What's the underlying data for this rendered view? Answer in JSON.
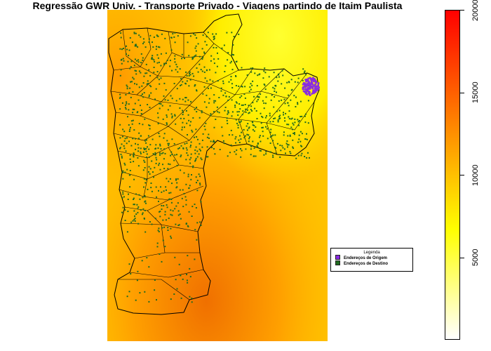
{
  "map": {
    "title": "Regressão GWR Univ. - Transporte Privado - Viagens partindo de Itaim Paulista",
    "legend": {
      "title": "Legenda",
      "items": [
        {
          "label": "Endereços de Origem",
          "color": "#8a2be2"
        },
        {
          "label": "Endereços de Destino",
          "color": "#1f6b1f"
        }
      ]
    },
    "colorbar": {
      "min": 0,
      "max": 20000,
      "ticks": [
        "5000",
        "10000",
        "15000",
        "20000"
      ],
      "colors": [
        "#ffffff",
        "#ffff00",
        "#ff8000",
        "#ff0000"
      ]
    },
    "region_outline_color": "#000000"
  }
}
